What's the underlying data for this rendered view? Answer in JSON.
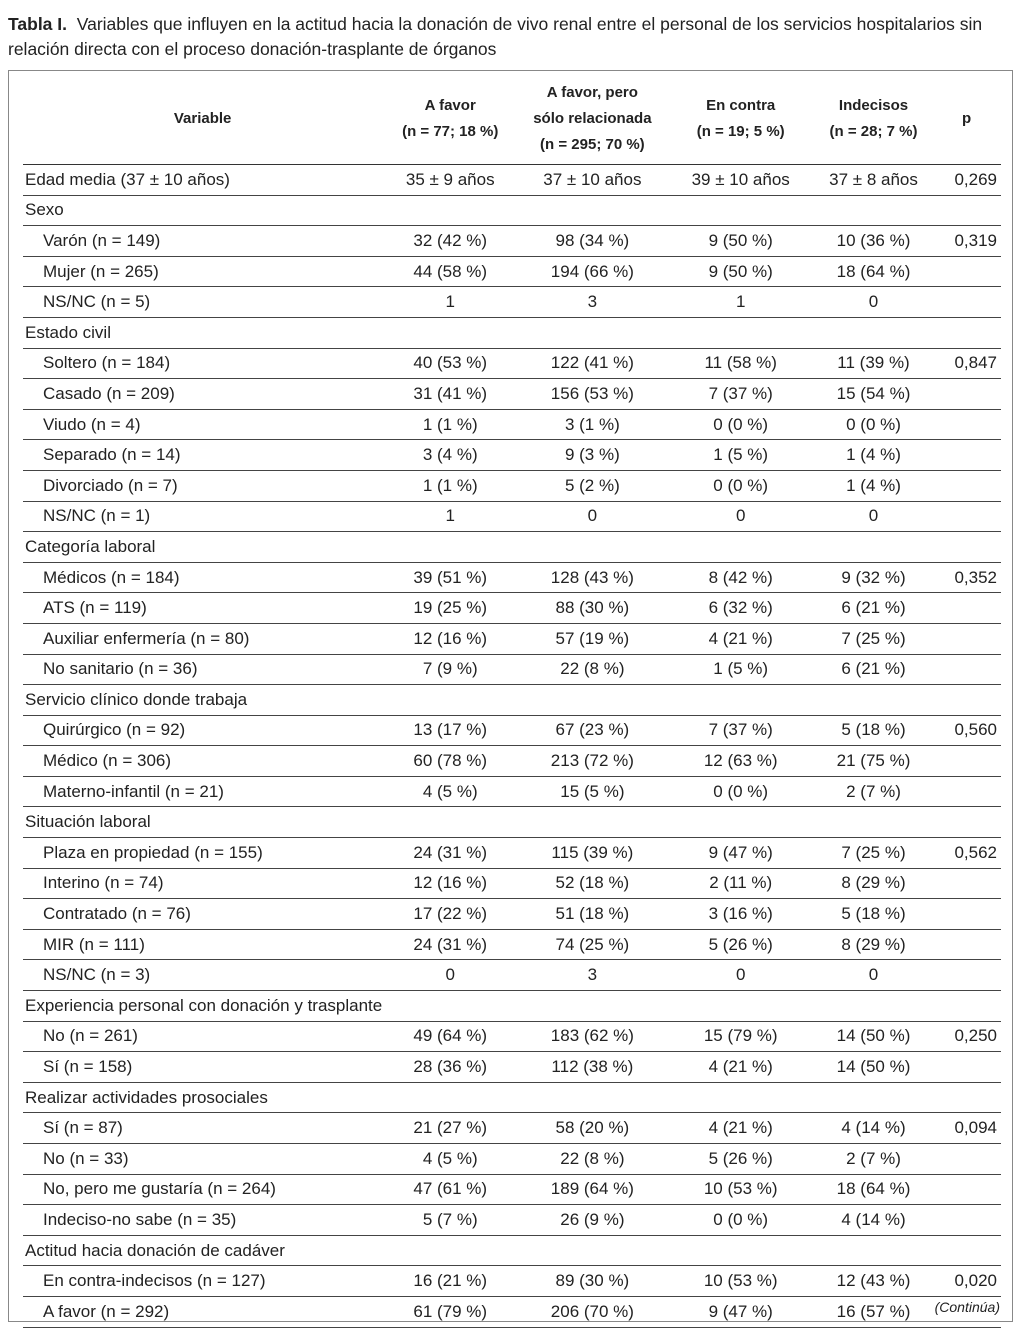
{
  "caption": {
    "label": "Tabla I.",
    "text": "Variables que influyen en la actitud hacia la donación de vivo renal entre el personal de los servicios hospitalarios sin relación directa con el proceso donación-trasplante de órganos"
  },
  "headers": [
    {
      "l1": "Variable",
      "l2": ""
    },
    {
      "l1": "A favor",
      "l2": "(n = 77; 18 %)"
    },
    {
      "l1": "A favor, pero",
      "l2": "sólo relacionada",
      "l3": "(n = 295; 70 %)"
    },
    {
      "l1": "En contra",
      "l2": "(n = 19; 5 %)"
    },
    {
      "l1": "Indecisos",
      "l2": "(n = 28; 7 %)"
    },
    {
      "l1": "p",
      "l2": ""
    }
  ],
  "rows": [
    {
      "sub": false,
      "cells": [
        "Edad media (37 ± 10 años)",
        "35 ± 9 años",
        "37 ± 10 años",
        "39 ± 10 años",
        "37 ± 8 años",
        "0,269"
      ]
    },
    {
      "sub": false,
      "cells": [
        "Sexo",
        "",
        "",
        "",
        "",
        ""
      ]
    },
    {
      "sub": true,
      "cells": [
        "Varón (n = 149)",
        "32 (42 %)",
        "98 (34 %)",
        "9 (50 %)",
        "10 (36 %)",
        "0,319"
      ]
    },
    {
      "sub": true,
      "cells": [
        "Mujer (n = 265)",
        "44 (58 %)",
        "194 (66 %)",
        "9 (50 %)",
        "18 (64 %)",
        ""
      ]
    },
    {
      "sub": true,
      "cells": [
        "NS/NC (n = 5)",
        "1",
        "3",
        "1",
        "0",
        ""
      ]
    },
    {
      "sub": false,
      "cells": [
        "Estado civil",
        "",
        "",
        "",
        "",
        ""
      ]
    },
    {
      "sub": true,
      "cells": [
        "Soltero (n = 184)",
        "40 (53 %)",
        "122 (41 %)",
        "11 (58 %)",
        "11 (39 %)",
        "0,847"
      ]
    },
    {
      "sub": true,
      "cells": [
        "Casado (n = 209)",
        "31 (41 %)",
        "156 (53 %)",
        "7 (37 %)",
        "15 (54 %)",
        ""
      ]
    },
    {
      "sub": true,
      "cells": [
        "Viudo (n = 4)",
        "1 (1 %)",
        "3 (1 %)",
        "0 (0 %)",
        "0 (0 %)",
        ""
      ]
    },
    {
      "sub": true,
      "cells": [
        "Separado (n = 14)",
        "3 (4 %)",
        "9 (3 %)",
        "1 (5 %)",
        "1 (4 %)",
        ""
      ]
    },
    {
      "sub": true,
      "cells": [
        "Divorciado (n = 7)",
        "1 (1 %)",
        "5 (2 %)",
        "0 (0 %)",
        "1 (4 %)",
        ""
      ]
    },
    {
      "sub": true,
      "cells": [
        "NS/NC (n = 1)",
        "1",
        "0",
        "0",
        "0",
        ""
      ]
    },
    {
      "sub": false,
      "cells": [
        "Categoría laboral",
        "",
        "",
        "",
        "",
        ""
      ]
    },
    {
      "sub": true,
      "cells": [
        "Médicos (n = 184)",
        "39 (51 %)",
        "128 (43 %)",
        "8 (42 %)",
        "9 (32 %)",
        "0,352"
      ]
    },
    {
      "sub": true,
      "cells": [
        "ATS (n = 119)",
        "19 (25 %)",
        "88 (30 %)",
        "6 (32 %)",
        "6 (21 %)",
        ""
      ]
    },
    {
      "sub": true,
      "cells": [
        "Auxiliar enfermería (n = 80)",
        "12 (16 %)",
        "57 (19 %)",
        "4 (21 %)",
        "7 (25 %)",
        ""
      ]
    },
    {
      "sub": true,
      "cells": [
        "No sanitario (n = 36)",
        "7 (9 %)",
        "22 (8 %)",
        "1 (5 %)",
        "6 (21 %)",
        ""
      ]
    },
    {
      "sub": false,
      "cells": [
        "Servicio clínico donde trabaja",
        "",
        "",
        "",
        "",
        ""
      ]
    },
    {
      "sub": true,
      "cells": [
        "Quirúrgico (n = 92)",
        "13 (17 %)",
        "67 (23 %)",
        "7 (37 %)",
        "5 (18 %)",
        "0,560"
      ]
    },
    {
      "sub": true,
      "cells": [
        "Médico (n = 306)",
        "60 (78 %)",
        "213 (72 %)",
        "12 (63 %)",
        "21 (75 %)",
        ""
      ]
    },
    {
      "sub": true,
      "cells": [
        "Materno-infantil (n = 21)",
        "4 (5 %)",
        "15 (5 %)",
        "0 (0 %)",
        "2 (7 %)",
        ""
      ]
    },
    {
      "sub": false,
      "cells": [
        "Situación laboral",
        "",
        "",
        "",
        "",
        ""
      ]
    },
    {
      "sub": true,
      "cells": [
        "Plaza en propiedad (n = 155)",
        "24 (31 %)",
        "115 (39 %)",
        "9 (47 %)",
        "7 (25 %)",
        "0,562"
      ]
    },
    {
      "sub": true,
      "cells": [
        "Interino (n = 74)",
        "12 (16 %)",
        "52 (18 %)",
        "2 (11 %)",
        "8 (29 %)",
        ""
      ]
    },
    {
      "sub": true,
      "cells": [
        "Contratado (n = 76)",
        "17 (22 %)",
        "51 (18 %)",
        "3 (16 %)",
        "5 (18 %)",
        ""
      ]
    },
    {
      "sub": true,
      "cells": [
        "MIR (n = 111)",
        "24 (31 %)",
        "74 (25 %)",
        "5 (26 %)",
        "8 (29 %)",
        ""
      ]
    },
    {
      "sub": true,
      "cells": [
        "NS/NC (n = 3)",
        "0",
        "3",
        "0",
        "0",
        ""
      ]
    },
    {
      "sub": false,
      "cells": [
        "Experiencia personal con donación y trasplante",
        "",
        "",
        "",
        "",
        ""
      ]
    },
    {
      "sub": true,
      "cells": [
        "No (n = 261)",
        "49 (64 %)",
        "183 (62 %)",
        "15 (79 %)",
        "14 (50 %)",
        "0,250"
      ]
    },
    {
      "sub": true,
      "cells": [
        "Sí (n = 158)",
        "28 (36 %)",
        "112 (38 %)",
        "4 (21 %)",
        "14 (50 %)",
        ""
      ]
    },
    {
      "sub": false,
      "cells": [
        "Realizar actividades prosociales",
        "",
        "",
        "",
        "",
        ""
      ]
    },
    {
      "sub": true,
      "cells": [
        "Sí (n = 87)",
        "21 (27 %)",
        "58 (20 %)",
        "4 (21 %)",
        "4 (14 %)",
        "0,094"
      ]
    },
    {
      "sub": true,
      "cells": [
        "No (n = 33)",
        "4 (5 %)",
        "22 (8 %)",
        "5 (26 %)",
        "2 (7 %)",
        ""
      ]
    },
    {
      "sub": true,
      "cells": [
        "No, pero me gustaría (n = 264)",
        "47 (61 %)",
        "189 (64 %)",
        "10 (53 %)",
        "18 (64 %)",
        ""
      ]
    },
    {
      "sub": true,
      "cells": [
        "Indeciso-no sabe (n = 35)",
        "5 (7 %)",
        "26 (9 %)",
        "0 (0 %)",
        "4 (14 %)",
        ""
      ]
    },
    {
      "sub": false,
      "cells": [
        "Actitud hacia donación de cadáver",
        "",
        "",
        "",
        "",
        ""
      ]
    },
    {
      "sub": true,
      "cells": [
        "En contra-indecisos (n = 127)",
        "16 (21 %)",
        "89 (30 %)",
        "10 (53 %)",
        "12 (43 %)",
        "0,020"
      ]
    },
    {
      "sub": true,
      "cells": [
        "A favor (n = 292)",
        "61 (79 %)",
        "206 (70 %)",
        "9 (47 %)",
        "16 (57 %)",
        ""
      ]
    }
  ],
  "footer": {
    "continued": "(Continúa)"
  }
}
